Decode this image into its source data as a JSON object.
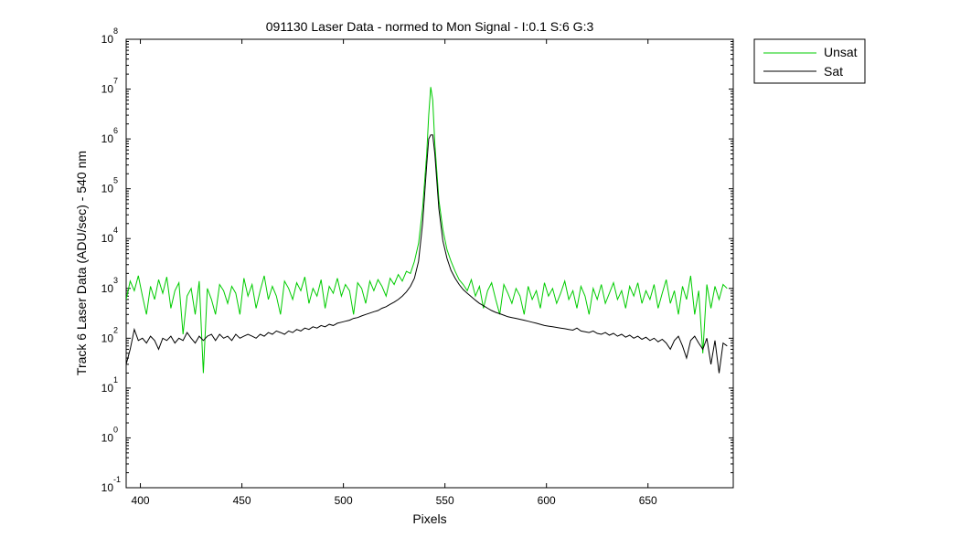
{
  "chart_data": {
    "type": "line",
    "title": "091130 Laser Data - normed to Mon Signal -   I:0.1  S:6  G:3",
    "xlabel": "Pixels",
    "ylabel": "Track 6 Laser Data (ADU/sec) - 540 nm",
    "xlim": [
      393,
      692
    ],
    "ylim_log10": [
      -1,
      8
    ],
    "yscale": "log",
    "grid": false,
    "legend": "outside-top-right",
    "x_ticks": [
      400,
      450,
      500,
      550,
      600,
      650
    ],
    "y_tick_exponents": [
      -1,
      0,
      1,
      2,
      3,
      4,
      5,
      6,
      7,
      8
    ],
    "y_tick_base": "10",
    "series": [
      {
        "name": "Unsat",
        "color": "#00cc00",
        "points": [
          [
            393,
            600
          ],
          [
            395,
            1400
          ],
          [
            397,
            900
          ],
          [
            399,
            1800
          ],
          [
            401,
            700
          ],
          [
            403,
            300
          ],
          [
            405,
            1100
          ],
          [
            407,
            600
          ],
          [
            409,
            1500
          ],
          [
            411,
            800
          ],
          [
            413,
            1700
          ],
          [
            415,
            400
          ],
          [
            417,
            900
          ],
          [
            419,
            1300
          ],
          [
            421,
            120
          ],
          [
            423,
            700
          ],
          [
            425,
            1000
          ],
          [
            427,
            300
          ],
          [
            429,
            1400
          ],
          [
            431,
            20
          ],
          [
            433,
            1000
          ],
          [
            435,
            600
          ],
          [
            437,
            300
          ],
          [
            439,
            1200
          ],
          [
            441,
            900
          ],
          [
            443,
            500
          ],
          [
            445,
            1100
          ],
          [
            447,
            800
          ],
          [
            449,
            300
          ],
          [
            451,
            1600
          ],
          [
            453,
            700
          ],
          [
            455,
            1200
          ],
          [
            457,
            400
          ],
          [
            459,
            900
          ],
          [
            461,
            1800
          ],
          [
            463,
            600
          ],
          [
            465,
            1100
          ],
          [
            467,
            700
          ],
          [
            469,
            300
          ],
          [
            471,
            1400
          ],
          [
            473,
            1000
          ],
          [
            475,
            600
          ],
          [
            477,
            1300
          ],
          [
            479,
            900
          ],
          [
            481,
            1700
          ],
          [
            483,
            500
          ],
          [
            485,
            1000
          ],
          [
            487,
            700
          ],
          [
            489,
            1500
          ],
          [
            491,
            400
          ],
          [
            493,
            1100
          ],
          [
            495,
            800
          ],
          [
            497,
            1600
          ],
          [
            499,
            700
          ],
          [
            501,
            1200
          ],
          [
            503,
            900
          ],
          [
            505,
            300
          ],
          [
            507,
            1300
          ],
          [
            509,
            1000
          ],
          [
            511,
            500
          ],
          [
            513,
            1400
          ],
          [
            515,
            900
          ],
          [
            517,
            1500
          ],
          [
            519,
            1100
          ],
          [
            521,
            700
          ],
          [
            523,
            1600
          ],
          [
            525,
            1200
          ],
          [
            527,
            1900
          ],
          [
            529,
            1400
          ],
          [
            531,
            2200
          ],
          [
            533,
            2000
          ],
          [
            535,
            3500
          ],
          [
            537,
            8000
          ],
          [
            539,
            40000
          ],
          [
            541,
            500000
          ],
          [
            542,
            3000000
          ],
          [
            543,
            11000000
          ],
          [
            544,
            6000000
          ],
          [
            545,
            800000
          ],
          [
            547,
            60000
          ],
          [
            549,
            15000
          ],
          [
            551,
            6000
          ],
          [
            553,
            3500
          ],
          [
            555,
            2200
          ],
          [
            557,
            1500
          ],
          [
            559,
            1200
          ],
          [
            561,
            900
          ],
          [
            563,
            1500
          ],
          [
            565,
            700
          ],
          [
            567,
            1100
          ],
          [
            569,
            400
          ],
          [
            571,
            900
          ],
          [
            573,
            1300
          ],
          [
            575,
            600
          ],
          [
            577,
            300
          ],
          [
            579,
            1200
          ],
          [
            581,
            800
          ],
          [
            583,
            500
          ],
          [
            585,
            1000
          ],
          [
            587,
            700
          ],
          [
            589,
            300
          ],
          [
            591,
            1100
          ],
          [
            593,
            600
          ],
          [
            595,
            900
          ],
          [
            597,
            400
          ],
          [
            599,
            1300
          ],
          [
            601,
            700
          ],
          [
            603,
            1000
          ],
          [
            605,
            500
          ],
          [
            607,
            800
          ],
          [
            609,
            1400
          ],
          [
            611,
            600
          ],
          [
            613,
            900
          ],
          [
            615,
            400
          ],
          [
            617,
            1100
          ],
          [
            619,
            700
          ],
          [
            621,
            300
          ],
          [
            623,
            1000
          ],
          [
            625,
            600
          ],
          [
            627,
            1200
          ],
          [
            629,
            500
          ],
          [
            631,
            800
          ],
          [
            633,
            1300
          ],
          [
            635,
            600
          ],
          [
            637,
            900
          ],
          [
            639,
            400
          ],
          [
            641,
            1100
          ],
          [
            643,
            700
          ],
          [
            645,
            1300
          ],
          [
            647,
            500
          ],
          [
            649,
            900
          ],
          [
            651,
            600
          ],
          [
            653,
            1200
          ],
          [
            655,
            400
          ],
          [
            657,
            800
          ],
          [
            659,
            1500
          ],
          [
            661,
            500
          ],
          [
            663,
            900
          ],
          [
            665,
            300
          ],
          [
            667,
            1100
          ],
          [
            669,
            600
          ],
          [
            671,
            1800
          ],
          [
            673,
            300
          ],
          [
            675,
            900
          ],
          [
            677,
            50
          ],
          [
            679,
            1200
          ],
          [
            681,
            400
          ],
          [
            683,
            1100
          ],
          [
            685,
            600
          ],
          [
            687,
            1200
          ],
          [
            689,
            1000
          ]
        ]
      },
      {
        "name": "Sat",
        "color": "#000000",
        "points": [
          [
            393,
            30
          ],
          [
            395,
            60
          ],
          [
            397,
            150
          ],
          [
            399,
            90
          ],
          [
            401,
            100
          ],
          [
            403,
            80
          ],
          [
            405,
            110
          ],
          [
            407,
            90
          ],
          [
            409,
            60
          ],
          [
            411,
            100
          ],
          [
            413,
            90
          ],
          [
            415,
            110
          ],
          [
            417,
            80
          ],
          [
            419,
            100
          ],
          [
            421,
            90
          ],
          [
            423,
            130
          ],
          [
            425,
            100
          ],
          [
            427,
            80
          ],
          [
            429,
            110
          ],
          [
            431,
            90
          ],
          [
            433,
            110
          ],
          [
            435,
            120
          ],
          [
            437,
            90
          ],
          [
            439,
            120
          ],
          [
            441,
            100
          ],
          [
            443,
            110
          ],
          [
            445,
            90
          ],
          [
            447,
            120
          ],
          [
            449,
            100
          ],
          [
            451,
            110
          ],
          [
            453,
            120
          ],
          [
            455,
            110
          ],
          [
            457,
            100
          ],
          [
            459,
            120
          ],
          [
            461,
            110
          ],
          [
            463,
            130
          ],
          [
            465,
            120
          ],
          [
            467,
            140
          ],
          [
            469,
            130
          ],
          [
            471,
            120
          ],
          [
            473,
            140
          ],
          [
            475,
            130
          ],
          [
            477,
            150
          ],
          [
            479,
            140
          ],
          [
            481,
            160
          ],
          [
            483,
            150
          ],
          [
            485,
            170
          ],
          [
            487,
            160
          ],
          [
            489,
            180
          ],
          [
            491,
            170
          ],
          [
            493,
            190
          ],
          [
            495,
            180
          ],
          [
            497,
            200
          ],
          [
            499,
            210
          ],
          [
            501,
            220
          ],
          [
            503,
            230
          ],
          [
            505,
            250
          ],
          [
            507,
            260
          ],
          [
            509,
            280
          ],
          [
            511,
            300
          ],
          [
            513,
            320
          ],
          [
            515,
            340
          ],
          [
            517,
            360
          ],
          [
            519,
            400
          ],
          [
            521,
            430
          ],
          [
            523,
            480
          ],
          [
            525,
            530
          ],
          [
            527,
            600
          ],
          [
            529,
            700
          ],
          [
            531,
            850
          ],
          [
            533,
            1100
          ],
          [
            535,
            1600
          ],
          [
            537,
            3500
          ],
          [
            539,
            20000
          ],
          [
            541,
            300000
          ],
          [
            542,
            1000000
          ],
          [
            543,
            1200000
          ],
          [
            544,
            1200000
          ],
          [
            545,
            500000
          ],
          [
            547,
            40000
          ],
          [
            549,
            9000
          ],
          [
            551,
            4000
          ],
          [
            553,
            2300
          ],
          [
            555,
            1600
          ],
          [
            557,
            1200
          ],
          [
            559,
            950
          ],
          [
            561,
            800
          ],
          [
            563,
            680
          ],
          [
            565,
            580
          ],
          [
            567,
            500
          ],
          [
            569,
            450
          ],
          [
            571,
            400
          ],
          [
            573,
            360
          ],
          [
            575,
            330
          ],
          [
            577,
            310
          ],
          [
            579,
            290
          ],
          [
            581,
            270
          ],
          [
            583,
            260
          ],
          [
            585,
            250
          ],
          [
            587,
            240
          ],
          [
            589,
            230
          ],
          [
            591,
            220
          ],
          [
            593,
            210
          ],
          [
            595,
            200
          ],
          [
            597,
            190
          ],
          [
            599,
            180
          ],
          [
            601,
            175
          ],
          [
            603,
            170
          ],
          [
            605,
            165
          ],
          [
            607,
            160
          ],
          [
            609,
            155
          ],
          [
            611,
            150
          ],
          [
            613,
            145
          ],
          [
            615,
            160
          ],
          [
            617,
            140
          ],
          [
            619,
            135
          ],
          [
            621,
            130
          ],
          [
            623,
            140
          ],
          [
            625,
            125
          ],
          [
            627,
            120
          ],
          [
            629,
            130
          ],
          [
            631,
            115
          ],
          [
            633,
            125
          ],
          [
            635,
            110
          ],
          [
            637,
            120
          ],
          [
            639,
            105
          ],
          [
            641,
            115
          ],
          [
            643,
            100
          ],
          [
            645,
            110
          ],
          [
            647,
            95
          ],
          [
            649,
            105
          ],
          [
            651,
            90
          ],
          [
            653,
            100
          ],
          [
            655,
            85
          ],
          [
            657,
            95
          ],
          [
            659,
            80
          ],
          [
            661,
            60
          ],
          [
            663,
            90
          ],
          [
            665,
            110
          ],
          [
            667,
            70
          ],
          [
            669,
            40
          ],
          [
            671,
            90
          ],
          [
            673,
            110
          ],
          [
            675,
            80
          ],
          [
            677,
            60
          ],
          [
            679,
            100
          ],
          [
            681,
            30
          ],
          [
            683,
            90
          ],
          [
            685,
            20
          ],
          [
            687,
            80
          ],
          [
            689,
            70
          ]
        ]
      }
    ]
  }
}
